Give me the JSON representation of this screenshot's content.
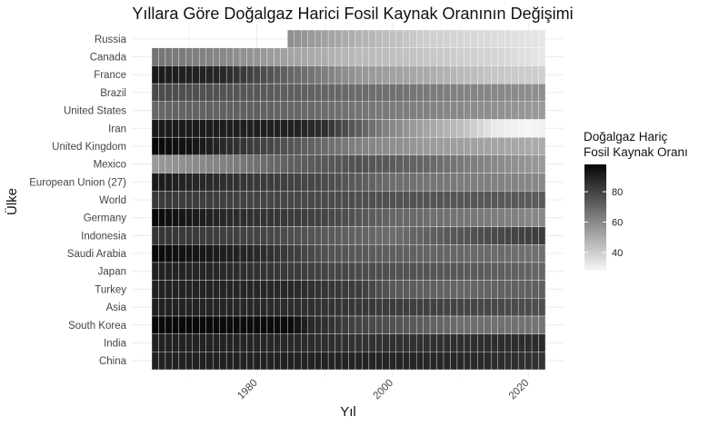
{
  "chart_data": {
    "type": "heatmap",
    "title": "Yıllara Göre Doğalgaz Harici Fosil Kaynak Oranının Değişimi",
    "xlabel": "Yıl",
    "ylabel": "Ülke",
    "x_ticks": [
      1980,
      2000,
      2020
    ],
    "x_range": [
      1965,
      2022
    ],
    "grid": true,
    "countries": [
      "China",
      "India",
      "South Korea",
      "Asia",
      "Turkey",
      "Japan",
      "Saudi Arabia",
      "Indonesia",
      "Germany",
      "World",
      "European Union (27)",
      "Mexico",
      "United Kingdom",
      "Iran",
      "United States",
      "Brazil",
      "France",
      "Canada",
      "Russia"
    ],
    "legend": {
      "title_lines": [
        "Doğalgaz Hariç",
        "Fosil Kaynak Oranı"
      ],
      "ticks": [
        40,
        60,
        80
      ],
      "range": [
        28,
        98
      ],
      "position": "right",
      "color_low": "#f7f7f7",
      "color_high": "#050505"
    },
    "series": [
      {
        "country": "China",
        "start_year": 1965,
        "keyframes": [
          [
            1965,
            90
          ],
          [
            1980,
            90
          ],
          [
            2000,
            89
          ],
          [
            2010,
            88
          ],
          [
            2022,
            85
          ]
        ]
      },
      {
        "country": "India",
        "start_year": 1965,
        "keyframes": [
          [
            1965,
            90
          ],
          [
            1980,
            89
          ],
          [
            1995,
            85
          ],
          [
            2010,
            86
          ],
          [
            2022,
            87
          ]
        ]
      },
      {
        "country": "South Korea",
        "start_year": 1965,
        "keyframes": [
          [
            1965,
            97
          ],
          [
            1985,
            96
          ],
          [
            1988,
            88
          ],
          [
            1995,
            80
          ],
          [
            2005,
            72
          ],
          [
            2010,
            68
          ],
          [
            2022,
            66
          ]
        ]
      },
      {
        "country": "Asia",
        "start_year": 1965,
        "keyframes": [
          [
            1965,
            90
          ],
          [
            1980,
            88
          ],
          [
            2000,
            82
          ],
          [
            2022,
            77
          ]
        ]
      },
      {
        "country": "Turkey",
        "start_year": 1965,
        "keyframes": [
          [
            1965,
            90
          ],
          [
            1985,
            88
          ],
          [
            1990,
            84
          ],
          [
            1995,
            82
          ],
          [
            2000,
            74
          ],
          [
            2010,
            70
          ],
          [
            2022,
            72
          ]
        ]
      },
      {
        "country": "Japan",
        "start_year": 1965,
        "keyframes": [
          [
            1965,
            90
          ],
          [
            1975,
            88
          ],
          [
            1990,
            80
          ],
          [
            2000,
            76
          ],
          [
            2010,
            74
          ],
          [
            2022,
            70
          ]
        ]
      },
      {
        "country": "Saudi Arabia",
        "start_year": 1965,
        "keyframes": [
          [
            1965,
            97
          ],
          [
            1980,
            88
          ],
          [
            1990,
            76
          ],
          [
            2000,
            72
          ],
          [
            2022,
            67
          ]
        ]
      },
      {
        "country": "Indonesia",
        "start_year": 1965,
        "keyframes": [
          [
            1965,
            84
          ],
          [
            1980,
            80
          ],
          [
            1990,
            74
          ],
          [
            2000,
            68
          ],
          [
            2010,
            75
          ],
          [
            2022,
            82
          ]
        ]
      },
      {
        "country": "Germany",
        "start_year": 1965,
        "keyframes": [
          [
            1965,
            97
          ],
          [
            1975,
            88
          ],
          [
            1990,
            80
          ],
          [
            2000,
            70
          ],
          [
            2010,
            66
          ],
          [
            2022,
            60
          ]
        ]
      },
      {
        "country": "World",
        "start_year": 1965,
        "keyframes": [
          [
            1965,
            83
          ],
          [
            1980,
            80
          ],
          [
            2000,
            76
          ],
          [
            2022,
            73
          ]
        ]
      },
      {
        "country": "European Union (27)",
        "start_year": 1965,
        "keyframes": [
          [
            1965,
            92
          ],
          [
            1975,
            86
          ],
          [
            1990,
            78
          ],
          [
            2000,
            68
          ],
          [
            2010,
            64
          ],
          [
            2022,
            60
          ]
        ]
      },
      {
        "country": "Mexico",
        "start_year": 1965,
        "keyframes": [
          [
            1965,
            55
          ],
          [
            1975,
            62
          ],
          [
            1985,
            72
          ],
          [
            1995,
            76
          ],
          [
            2005,
            70
          ],
          [
            2015,
            60
          ],
          [
            2022,
            55
          ]
        ]
      },
      {
        "country": "United Kingdom",
        "start_year": 1965,
        "keyframes": [
          [
            1965,
            97
          ],
          [
            1970,
            94
          ],
          [
            1975,
            88
          ],
          [
            1985,
            75
          ],
          [
            1995,
            62
          ],
          [
            2005,
            55
          ],
          [
            2015,
            52
          ],
          [
            2022,
            50
          ]
        ]
      },
      {
        "country": "Iran",
        "start_year": 1965,
        "keyframes": [
          [
            1965,
            92
          ],
          [
            1985,
            90
          ],
          [
            1990,
            86
          ],
          [
            1995,
            72
          ],
          [
            2000,
            60
          ],
          [
            2005,
            52
          ],
          [
            2010,
            45
          ],
          [
            2015,
            32
          ],
          [
            2020,
            28
          ],
          [
            2022,
            30
          ]
        ]
      },
      {
        "country": "United States",
        "start_year": 1965,
        "keyframes": [
          [
            1965,
            70
          ],
          [
            1980,
            72
          ],
          [
            2000,
            64
          ],
          [
            2010,
            60
          ],
          [
            2022,
            55
          ]
        ]
      },
      {
        "country": "Brazil",
        "start_year": 1965,
        "keyframes": [
          [
            1965,
            78
          ],
          [
            1980,
            74
          ],
          [
            2000,
            67
          ],
          [
            2010,
            62
          ],
          [
            2022,
            58
          ]
        ]
      },
      {
        "country": "France",
        "start_year": 1965,
        "keyframes": [
          [
            1965,
            92
          ],
          [
            1975,
            88
          ],
          [
            1985,
            70
          ],
          [
            1995,
            56
          ],
          [
            2005,
            50
          ],
          [
            2015,
            42
          ],
          [
            2022,
            40
          ]
        ]
      },
      {
        "country": "Canada",
        "start_year": 1965,
        "keyframes": [
          [
            1965,
            66
          ],
          [
            1975,
            60
          ],
          [
            1985,
            52
          ],
          [
            1995,
            46
          ],
          [
            2005,
            42
          ],
          [
            2015,
            38
          ],
          [
            2022,
            33
          ]
        ]
      },
      {
        "country": "Russia",
        "start_year": 1985,
        "keyframes": [
          [
            1985,
            58
          ],
          [
            1995,
            48
          ],
          [
            2005,
            40
          ],
          [
            2015,
            36
          ],
          [
            2022,
            33
          ]
        ]
      }
    ]
  }
}
